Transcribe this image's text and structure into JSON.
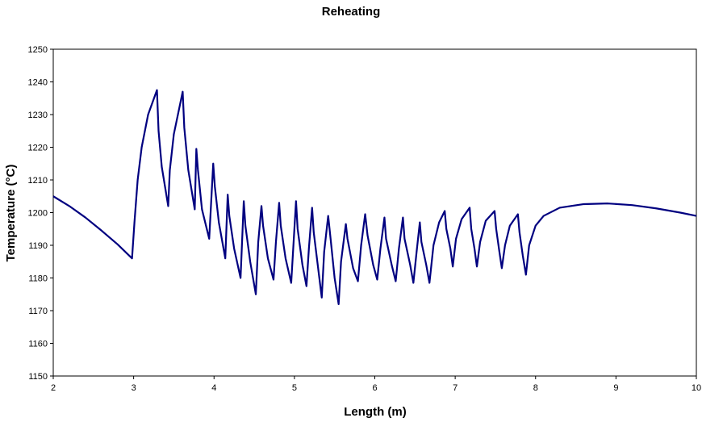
{
  "chart_data": {
    "type": "line",
    "title": "Reheating",
    "xlabel": "Length (m)",
    "ylabel": "Temperature (°C)",
    "xlim": [
      2,
      10
    ],
    "ylim": [
      1150,
      1250
    ],
    "x_ticks": [
      2,
      3,
      4,
      5,
      6,
      7,
      8,
      9,
      10
    ],
    "y_ticks": [
      1150,
      1160,
      1170,
      1180,
      1190,
      1200,
      1210,
      1220,
      1230,
      1240,
      1250
    ],
    "grid": false,
    "legend": "none",
    "line_color": "#000080",
    "series": [
      {
        "points": [
          [
            2.0,
            1205
          ],
          [
            2.2,
            1202
          ],
          [
            2.4,
            1198.5
          ],
          [
            2.6,
            1194.5
          ],
          [
            2.8,
            1190.3
          ],
          [
            2.98,
            1186
          ],
          [
            3.01,
            1197
          ],
          [
            3.05,
            1210
          ],
          [
            3.1,
            1220
          ],
          [
            3.18,
            1230
          ],
          [
            3.29,
            1237.5
          ],
          [
            3.31,
            1225
          ],
          [
            3.35,
            1214
          ],
          [
            3.43,
            1202
          ],
          [
            3.45,
            1213
          ],
          [
            3.5,
            1224
          ],
          [
            3.61,
            1237
          ],
          [
            3.63,
            1226
          ],
          [
            3.68,
            1213
          ],
          [
            3.76,
            1201
          ],
          [
            3.78,
            1219.5
          ],
          [
            3.8,
            1213
          ],
          [
            3.85,
            1201
          ],
          [
            3.94,
            1192
          ],
          [
            3.99,
            1215
          ],
          [
            4.01,
            1208
          ],
          [
            4.06,
            1197
          ],
          [
            4.14,
            1186
          ],
          [
            4.17,
            1205.5
          ],
          [
            4.19,
            1199
          ],
          [
            4.25,
            1189
          ],
          [
            4.33,
            1180
          ],
          [
            4.37,
            1203.5
          ],
          [
            4.39,
            1196
          ],
          [
            4.45,
            1185
          ],
          [
            4.52,
            1175
          ],
          [
            4.55,
            1191
          ],
          [
            4.59,
            1202
          ],
          [
            4.61,
            1196
          ],
          [
            4.67,
            1186
          ],
          [
            4.74,
            1179.5
          ],
          [
            4.77,
            1191
          ],
          [
            4.81,
            1203
          ],
          [
            4.83,
            1196
          ],
          [
            4.89,
            1186
          ],
          [
            4.96,
            1178.5
          ],
          [
            4.99,
            1191
          ],
          [
            5.02,
            1203.5
          ],
          [
            5.04,
            1195
          ],
          [
            5.1,
            1184
          ],
          [
            5.15,
            1177.5
          ],
          [
            5.18,
            1189
          ],
          [
            5.22,
            1201.5
          ],
          [
            5.24,
            1194
          ],
          [
            5.3,
            1182
          ],
          [
            5.34,
            1174
          ],
          [
            5.37,
            1188
          ],
          [
            5.42,
            1199
          ],
          [
            5.45,
            1192
          ],
          [
            5.5,
            1180
          ],
          [
            5.55,
            1172
          ],
          [
            5.58,
            1185
          ],
          [
            5.64,
            1196.5
          ],
          [
            5.66,
            1192
          ],
          [
            5.73,
            1183
          ],
          [
            5.79,
            1179
          ],
          [
            5.83,
            1190
          ],
          [
            5.88,
            1199.5
          ],
          [
            5.91,
            1193
          ],
          [
            5.98,
            1184
          ],
          [
            6.03,
            1179.5
          ],
          [
            6.07,
            1189
          ],
          [
            6.12,
            1198.5
          ],
          [
            6.14,
            1192
          ],
          [
            6.21,
            1184
          ],
          [
            6.26,
            1179
          ],
          [
            6.3,
            1189
          ],
          [
            6.35,
            1198.5
          ],
          [
            6.37,
            1192
          ],
          [
            6.44,
            1184
          ],
          [
            6.48,
            1178.5
          ],
          [
            6.52,
            1188
          ],
          [
            6.56,
            1197
          ],
          [
            6.58,
            1191
          ],
          [
            6.64,
            1184
          ],
          [
            6.68,
            1178.5
          ],
          [
            6.73,
            1190
          ],
          [
            6.8,
            1197
          ],
          [
            6.87,
            1200.5
          ],
          [
            6.89,
            1195
          ],
          [
            6.94,
            1189
          ],
          [
            6.97,
            1183.5
          ],
          [
            7.01,
            1192
          ],
          [
            7.08,
            1198
          ],
          [
            7.18,
            1201.5
          ],
          [
            7.2,
            1195
          ],
          [
            7.24,
            1189
          ],
          [
            7.27,
            1183.5
          ],
          [
            7.31,
            1191
          ],
          [
            7.38,
            1197.5
          ],
          [
            7.49,
            1200.5
          ],
          [
            7.51,
            1195
          ],
          [
            7.55,
            1188
          ],
          [
            7.58,
            1183
          ],
          [
            7.62,
            1190
          ],
          [
            7.68,
            1196
          ],
          [
            7.78,
            1199.5
          ],
          [
            7.8,
            1194
          ],
          [
            7.84,
            1187
          ],
          [
            7.88,
            1181
          ],
          [
            7.92,
            1190
          ],
          [
            8.0,
            1196
          ],
          [
            8.1,
            1199
          ],
          [
            8.3,
            1201.5
          ],
          [
            8.6,
            1202.6
          ],
          [
            8.9,
            1202.8
          ],
          [
            9.2,
            1202.3
          ],
          [
            9.5,
            1201.3
          ],
          [
            9.8,
            1200
          ],
          [
            10.0,
            1199
          ]
        ]
      }
    ]
  }
}
